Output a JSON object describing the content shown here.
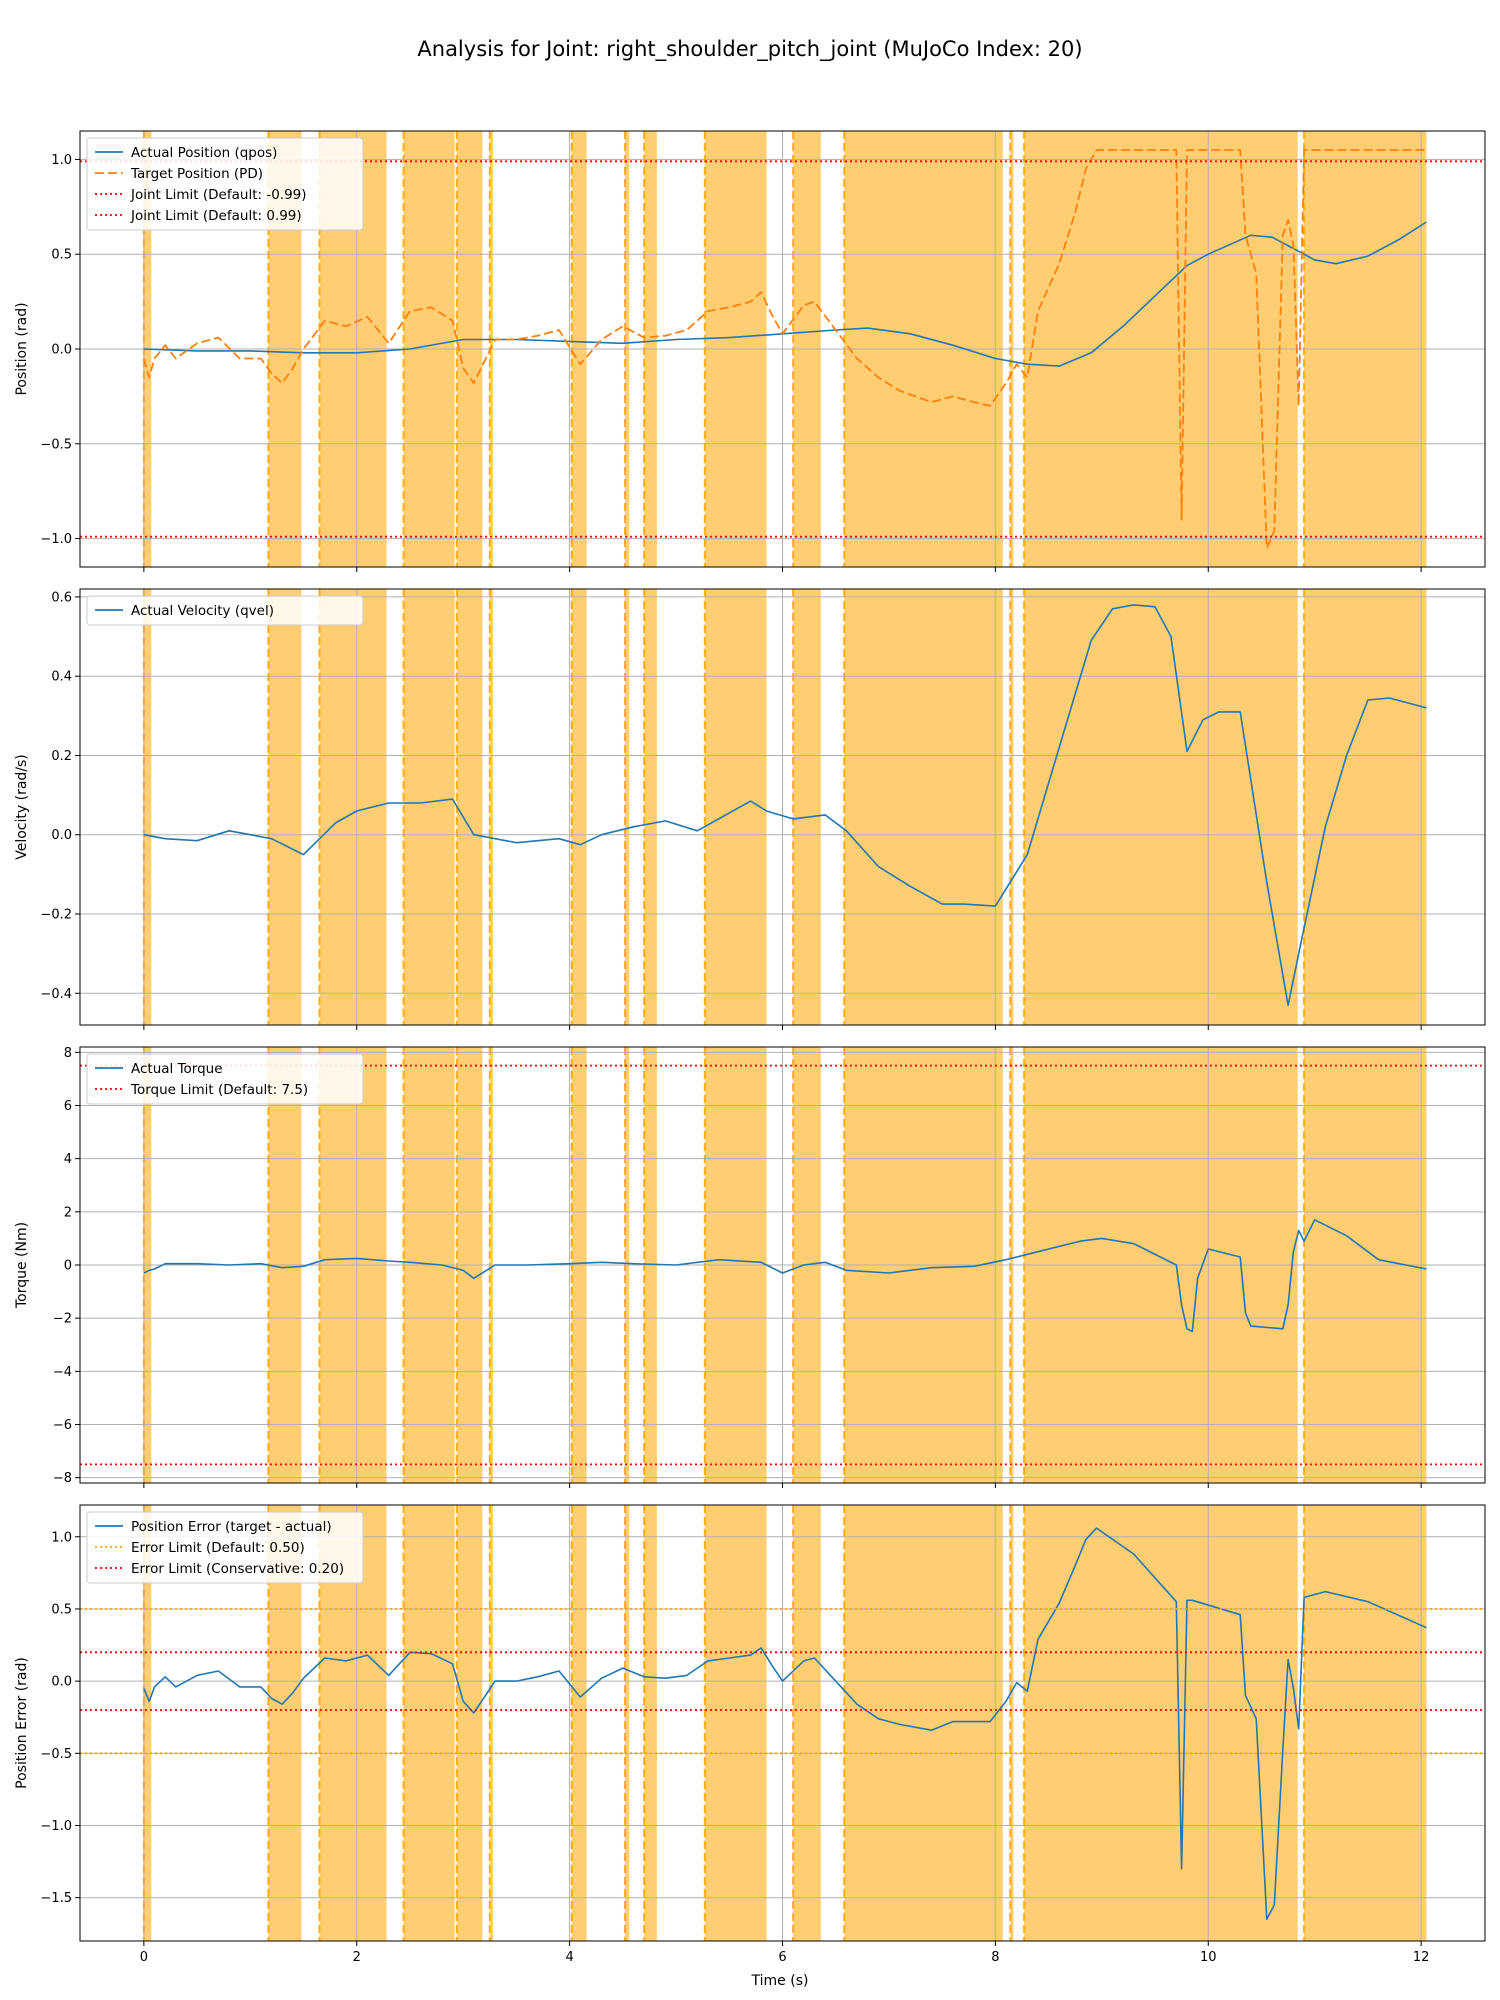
{
  "figure": {
    "title": "Analysis for Joint: right_shoulder_pitch_joint (MuJoCo Index: 20)",
    "xlabel": "Time (s)",
    "xlim": [
      -0.6,
      12.6
    ],
    "xticks": [
      0,
      2,
      4,
      6,
      8,
      10,
      12
    ],
    "colors": {
      "actual": "#1f77b4",
      "target": "#ff7f0e",
      "limit_red": "#ff0000",
      "limit_orange": "#ffa500",
      "shade": "#ffa500",
      "grid": "#b0b0b0"
    },
    "violation_spans": [
      [
        0.0,
        0.07
      ],
      [
        1.17,
        1.48
      ],
      [
        1.65,
        2.28
      ],
      [
        2.44,
        2.92
      ],
      [
        2.94,
        3.18
      ],
      [
        3.25,
        3.28
      ],
      [
        4.02,
        4.16
      ],
      [
        4.52,
        4.56
      ],
      [
        4.7,
        4.82
      ],
      [
        5.27,
        5.85
      ],
      [
        6.1,
        6.36
      ],
      [
        6.58,
        8.07
      ],
      [
        8.14,
        8.17
      ],
      [
        8.27,
        10.84
      ],
      [
        10.9,
        12.05
      ]
    ]
  },
  "chart_data": [
    {
      "type": "line",
      "ylabel": "Position (rad)",
      "ylim": [
        -1.15,
        1.15
      ],
      "yticks": [
        -1.0,
        -0.5,
        0.0,
        0.5,
        1.0
      ],
      "legend_position": "upper-left",
      "series": [
        {
          "name": "Actual Position (qpos)",
          "style": "solid",
          "color": "#1f77b4",
          "x": [
            0,
            0.5,
            1,
            1.5,
            2,
            2.5,
            3,
            3.5,
            4,
            4.5,
            5,
            5.5,
            6,
            6.5,
            6.8,
            7.2,
            7.6,
            8,
            8.3,
            8.6,
            8.9,
            9.2,
            9.5,
            9.8,
            10,
            10.2,
            10.4,
            10.6,
            10.8,
            11,
            11.2,
            11.5,
            11.8,
            12.05
          ],
          "y": [
            0.0,
            -0.01,
            -0.01,
            -0.02,
            -0.02,
            0.0,
            0.05,
            0.05,
            0.04,
            0.03,
            0.05,
            0.06,
            0.08,
            0.1,
            0.11,
            0.08,
            0.02,
            -0.05,
            -0.08,
            -0.09,
            -0.02,
            0.12,
            0.28,
            0.44,
            0.5,
            0.55,
            0.6,
            0.59,
            0.53,
            0.47,
            0.45,
            0.49,
            0.58,
            0.67
          ]
        },
        {
          "name": "Target Position (PD)",
          "style": "dashed",
          "color": "#ff7f0e",
          "x": [
            0,
            0.05,
            0.1,
            0.2,
            0.3,
            0.5,
            0.7,
            0.9,
            1.1,
            1.2,
            1.3,
            1.4,
            1.5,
            1.7,
            1.9,
            2.1,
            2.3,
            2.5,
            2.7,
            2.9,
            3.0,
            3.1,
            3.3,
            3.5,
            3.7,
            3.9,
            4.1,
            4.3,
            4.5,
            4.7,
            4.9,
            5.1,
            5.3,
            5.5,
            5.7,
            5.8,
            5.9,
            6.0,
            6.2,
            6.3,
            6.5,
            6.7,
            6.9,
            7.1,
            7.4,
            7.6,
            7.8,
            7.95,
            8.1,
            8.2,
            8.3,
            8.4,
            8.6,
            8.75,
            8.85,
            8.95,
            9.3,
            9.7,
            9.75,
            9.8,
            9.85,
            10.3,
            10.35,
            10.45,
            10.55,
            10.62,
            10.7,
            10.75,
            10.8,
            10.85,
            10.9,
            12.05
          ],
          "y": [
            -0.05,
            -0.15,
            -0.05,
            0.02,
            -0.05,
            0.03,
            0.06,
            -0.05,
            -0.05,
            -0.13,
            -0.18,
            -0.1,
            0.0,
            0.15,
            0.12,
            0.17,
            0.03,
            0.2,
            0.22,
            0.15,
            -0.1,
            -0.18,
            0.05,
            0.05,
            0.07,
            0.1,
            -0.08,
            0.05,
            0.12,
            0.06,
            0.07,
            0.1,
            0.2,
            0.22,
            0.25,
            0.3,
            0.18,
            0.08,
            0.23,
            0.25,
            0.1,
            -0.05,
            -0.15,
            -0.22,
            -0.28,
            -0.25,
            -0.28,
            -0.3,
            -0.18,
            -0.08,
            -0.15,
            0.2,
            0.45,
            0.72,
            0.95,
            1.05,
            1.05,
            1.05,
            -0.9,
            1.05,
            1.05,
            1.05,
            0.6,
            0.4,
            -1.05,
            -0.96,
            0.6,
            0.68,
            0.55,
            -0.3,
            1.05,
            1.05
          ]
        },
        {
          "name": "Joint Limit (Default: -0.99)",
          "style": "dotted",
          "color": "#ff0000",
          "x": [
            -0.6,
            12.6
          ],
          "y": [
            -0.99,
            -0.99
          ]
        },
        {
          "name": "Joint Limit (Default: 0.99)",
          "style": "dotted",
          "color": "#ff0000",
          "x": [
            -0.6,
            12.6
          ],
          "y": [
            0.99,
            0.99
          ]
        }
      ]
    },
    {
      "type": "line",
      "ylabel": "Velocity (rad/s)",
      "ylim": [
        -0.48,
        0.62
      ],
      "yticks": [
        -0.4,
        -0.2,
        0.0,
        0.2,
        0.4,
        0.6
      ],
      "legend_position": "upper-left",
      "series": [
        {
          "name": "Actual Velocity (qvel)",
          "style": "solid",
          "color": "#1f77b4",
          "x": [
            0,
            0.2,
            0.5,
            0.8,
            1.0,
            1.2,
            1.5,
            1.8,
            2.0,
            2.3,
            2.6,
            2.9,
            3.1,
            3.5,
            3.9,
            4.1,
            4.3,
            4.6,
            4.9,
            5.2,
            5.5,
            5.7,
            5.85,
            6.1,
            6.4,
            6.6,
            6.9,
            7.2,
            7.5,
            7.7,
            8.0,
            8.3,
            8.6,
            8.9,
            9.1,
            9.3,
            9.5,
            9.65,
            9.8,
            9.95,
            10.1,
            10.3,
            10.55,
            10.75,
            10.85,
            11.1,
            11.3,
            11.5,
            11.7,
            12.05
          ],
          "y": [
            0.0,
            -0.01,
            -0.015,
            0.01,
            0.0,
            -0.01,
            -0.05,
            0.03,
            0.06,
            0.08,
            0.08,
            0.09,
            0.0,
            -0.02,
            -0.01,
            -0.025,
            0.0,
            0.02,
            0.035,
            0.01,
            0.055,
            0.085,
            0.06,
            0.04,
            0.05,
            0.01,
            -0.08,
            -0.13,
            -0.175,
            -0.175,
            -0.18,
            -0.05,
            0.22,
            0.49,
            0.57,
            0.58,
            0.575,
            0.5,
            0.21,
            0.29,
            0.31,
            0.31,
            -0.12,
            -0.43,
            -0.3,
            0.02,
            0.2,
            0.34,
            0.345,
            0.32
          ]
        }
      ]
    },
    {
      "type": "line",
      "ylabel": "Torque (Nm)",
      "ylim": [
        -8.2,
        8.2
      ],
      "yticks": [
        -8,
        -6,
        -4,
        -2,
        0,
        2,
        4,
        6,
        8
      ],
      "legend_position": "upper-left",
      "series": [
        {
          "name": "Actual Torque",
          "style": "solid",
          "color": "#1f77b4",
          "x": [
            0,
            0.05,
            0.1,
            0.2,
            0.5,
            0.8,
            1.1,
            1.3,
            1.5,
            1.7,
            2.0,
            2.3,
            2.5,
            2.8,
            3.0,
            3.1,
            3.3,
            3.6,
            4.0,
            4.3,
            4.6,
            5.0,
            5.4,
            5.8,
            6.0,
            6.2,
            6.4,
            6.6,
            7.0,
            7.4,
            7.8,
            8.1,
            8.4,
            8.6,
            8.8,
            9.0,
            9.3,
            9.7,
            9.75,
            9.8,
            9.85,
            9.9,
            10.0,
            10.3,
            10.35,
            10.4,
            10.7,
            10.75,
            10.8,
            10.85,
            10.9,
            11.0,
            11.3,
            11.6,
            12.05
          ],
          "y": [
            -0.3,
            -0.2,
            -0.15,
            0.05,
            0.05,
            0.0,
            0.05,
            -0.1,
            -0.05,
            0.2,
            0.25,
            0.15,
            0.1,
            0.0,
            -0.2,
            -0.5,
            0.0,
            0.0,
            0.05,
            0.1,
            0.05,
            0.0,
            0.2,
            0.1,
            -0.3,
            0.0,
            0.1,
            -0.2,
            -0.3,
            -0.1,
            -0.05,
            0.2,
            0.5,
            0.7,
            0.9,
            1.0,
            0.8,
            0.0,
            -1.5,
            -2.4,
            -2.5,
            -0.5,
            0.6,
            0.3,
            -1.8,
            -2.3,
            -2.4,
            -1.5,
            0.5,
            1.3,
            0.9,
            1.7,
            1.1,
            0.2,
            -0.15
          ]
        },
        {
          "name": "Torque Limit (Default: 7.5)",
          "style": "dotted",
          "color": "#ff0000",
          "x": [
            -0.6,
            12.6
          ],
          "y": [
            7.5,
            7.5
          ]
        },
        {
          "name": "",
          "style": "dotted",
          "color": "#ff0000",
          "x": [
            -0.6,
            12.6
          ],
          "y": [
            -7.5,
            -7.5
          ]
        }
      ]
    },
    {
      "type": "line",
      "ylabel": "Position Error (rad)",
      "ylim": [
        -1.8,
        1.22
      ],
      "yticks": [
        -1.5,
        -1.0,
        -0.5,
        0.0,
        0.5,
        1.0
      ],
      "legend_position": "upper-left",
      "series": [
        {
          "name": "Position Error (target - actual)",
          "style": "solid",
          "color": "#1f77b4",
          "x": [
            0,
            0.05,
            0.1,
            0.2,
            0.3,
            0.5,
            0.7,
            0.9,
            1.1,
            1.2,
            1.3,
            1.4,
            1.5,
            1.7,
            1.9,
            2.1,
            2.3,
            2.5,
            2.7,
            2.9,
            3.0,
            3.1,
            3.3,
            3.5,
            3.7,
            3.9,
            4.1,
            4.3,
            4.5,
            4.7,
            4.9,
            5.1,
            5.3,
            5.5,
            5.7,
            5.8,
            5.9,
            6.0,
            6.2,
            6.3,
            6.5,
            6.7,
            6.9,
            7.1,
            7.4,
            7.6,
            7.8,
            7.95,
            8.1,
            8.2,
            8.3,
            8.4,
            8.6,
            8.75,
            8.85,
            8.95,
            9.3,
            9.7,
            9.75,
            9.8,
            9.85,
            10.3,
            10.35,
            10.45,
            10.55,
            10.62,
            10.7,
            10.75,
            10.8,
            10.85,
            10.9,
            11.1,
            11.5,
            12.05
          ],
          "y": [
            -0.05,
            -0.14,
            -0.04,
            0.03,
            -0.04,
            0.04,
            0.07,
            -0.04,
            -0.04,
            -0.12,
            -0.16,
            -0.08,
            0.02,
            0.16,
            0.14,
            0.18,
            0.04,
            0.2,
            0.19,
            0.12,
            -0.14,
            -0.22,
            0.0,
            0.0,
            0.03,
            0.07,
            -0.11,
            0.02,
            0.09,
            0.03,
            0.02,
            0.04,
            0.14,
            0.16,
            0.18,
            0.23,
            0.11,
            0.0,
            0.14,
            0.16,
            0.0,
            -0.16,
            -0.26,
            -0.3,
            -0.34,
            -0.28,
            -0.28,
            -0.28,
            -0.14,
            -0.01,
            -0.07,
            0.29,
            0.54,
            0.8,
            0.98,
            1.06,
            0.88,
            0.55,
            -1.3,
            0.56,
            0.56,
            0.46,
            -0.1,
            -0.26,
            -1.65,
            -1.55,
            -0.48,
            0.15,
            -0.05,
            -0.33,
            0.58,
            0.62,
            0.55,
            0.37
          ]
        },
        {
          "name": "Error Limit (Default: 0.50)",
          "style": "dotted",
          "color": "#ffa500",
          "x": [
            -0.6,
            12.6
          ],
          "y": [
            0.5,
            0.5
          ]
        },
        {
          "name": "",
          "style": "dotted",
          "color": "#ffa500",
          "x": [
            -0.6,
            12.6
          ],
          "y": [
            -0.5,
            -0.5
          ]
        },
        {
          "name": "Error Limit (Conservative: 0.20)",
          "style": "dotted",
          "color": "#ff0000",
          "x": [
            -0.6,
            12.6
          ],
          "y": [
            0.2,
            0.2
          ]
        },
        {
          "name": "",
          "style": "dotted",
          "color": "#ff0000",
          "x": [
            -0.6,
            12.6
          ],
          "y": [
            -0.2,
            -0.2
          ]
        }
      ]
    }
  ]
}
